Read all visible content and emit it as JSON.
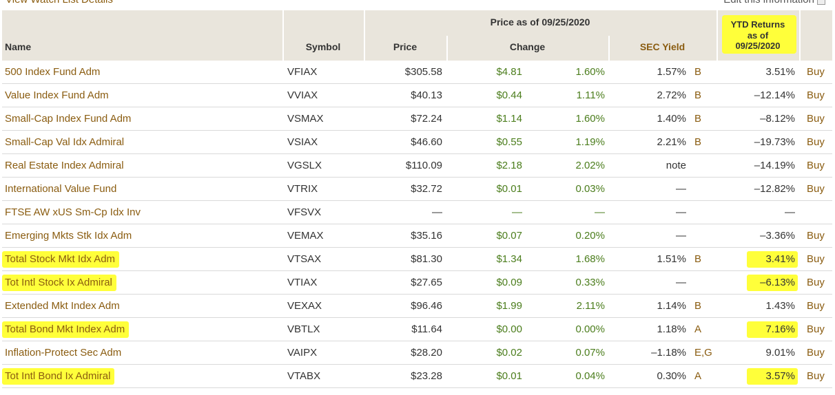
{
  "top_link": "View Watch List Details",
  "edit_link": "Edit this information",
  "header": {
    "name": "Name",
    "symbol": "Symbol",
    "price_group": "Price as of 09/25/2020",
    "price": "Price",
    "change": "Change",
    "sec_yield": "SEC Yield",
    "ytd_line1": "YTD Returns",
    "ytd_line2": "as of",
    "ytd_line3": "09/25/2020"
  },
  "rows": [
    {
      "name": "500 Index Fund Adm",
      "symbol": "VFIAX",
      "price": "$305.58",
      "change": "$4.81",
      "change_percent": "1.60%",
      "sec_yield": "1.57%",
      "sec_grade": "B",
      "ytd_return": "3.51%",
      "action": "Buy",
      "highlight": false
    },
    {
      "name": "Value Index Fund Adm",
      "symbol": "VVIAX",
      "price": "$40.13",
      "change": "$0.44",
      "change_percent": "1.11%",
      "sec_yield": "2.72%",
      "sec_grade": "B",
      "ytd_return": "–12.14%",
      "action": "Buy",
      "highlight": false
    },
    {
      "name": "Small-Cap Index Fund Adm",
      "symbol": "VSMAX",
      "price": "$72.24",
      "change": "$1.14",
      "change_percent": "1.60%",
      "sec_yield": "1.40%",
      "sec_grade": "B",
      "ytd_return": "–8.12%",
      "action": "Buy",
      "highlight": false
    },
    {
      "name": "Small-Cap Val Idx Admiral",
      "symbol": "VSIAX",
      "price": "$46.60",
      "change": "$0.55",
      "change_percent": "1.19%",
      "sec_yield": "2.21%",
      "sec_grade": "B",
      "ytd_return": "–19.73%",
      "action": "Buy",
      "highlight": false
    },
    {
      "name": "Real Estate Index Admiral",
      "symbol": "VGSLX",
      "price": "$110.09",
      "change": "$2.18",
      "change_percent": "2.02%",
      "sec_yield": "note",
      "sec_grade": null,
      "ytd_return": "–14.19%",
      "action": "Buy",
      "highlight": false
    },
    {
      "name": "International Value Fund",
      "symbol": "VTRIX",
      "price": "$32.72",
      "change": "$0.01",
      "change_percent": "0.03%",
      "sec_yield": "—",
      "sec_grade": null,
      "ytd_return": "–12.82%",
      "action": "Buy",
      "highlight": false
    },
    {
      "name": "FTSE AW xUS Sm-Cp Idx Inv",
      "symbol": "VFSVX",
      "price": "—",
      "change": "—",
      "change_percent": "—",
      "sec_yield": "—",
      "sec_grade": null,
      "ytd_return": "—",
      "action": null,
      "highlight": false
    },
    {
      "name": "Emerging Mkts Stk Idx Adm",
      "symbol": "VEMAX",
      "price": "$35.16",
      "change": "$0.07",
      "change_percent": "0.20%",
      "sec_yield": "—",
      "sec_grade": null,
      "ytd_return": "–3.36%",
      "action": "Buy",
      "highlight": false
    },
    {
      "name": "Total Stock Mkt Idx Adm",
      "symbol": "VTSAX",
      "price": "$81.30",
      "change": "$1.34",
      "change_percent": "1.68%",
      "sec_yield": "1.51%",
      "sec_grade": "B",
      "ytd_return": "3.41%",
      "action": "Buy",
      "highlight": true
    },
    {
      "name": "Tot Intl Stock Ix Admiral",
      "symbol": "VTIAX",
      "price": "$27.65",
      "change": "$0.09",
      "change_percent": "0.33%",
      "sec_yield": "—",
      "sec_grade": null,
      "ytd_return": "–6.13%",
      "action": "Buy",
      "highlight": true
    },
    {
      "name": "Extended Mkt Index Adm",
      "symbol": "VEXAX",
      "price": "$96.46",
      "change": "$1.99",
      "change_percent": "2.11%",
      "sec_yield": "1.14%",
      "sec_grade": "B",
      "ytd_return": "1.43%",
      "action": "Buy",
      "highlight": false
    },
    {
      "name": "Total Bond Mkt Index Adm",
      "symbol": "VBTLX",
      "price": "$11.64",
      "change": "$0.00",
      "change_percent": "0.00%",
      "sec_yield": "1.18%",
      "sec_grade": "A",
      "ytd_return": "7.16%",
      "action": "Buy",
      "highlight": true
    },
    {
      "name": "Inflation-Protect Sec Adm",
      "symbol": "VAIPX",
      "price": "$28.20",
      "change": "$0.02",
      "change_percent": "0.07%",
      "sec_yield": "–1.18%",
      "sec_grade": "E,G",
      "ytd_return": "9.01%",
      "action": "Buy",
      "highlight": false
    },
    {
      "name": "Tot Intl Bond Ix Admiral",
      "symbol": "VTABX",
      "price": "$23.28",
      "change": "$0.01",
      "change_percent": "0.04%",
      "sec_yield": "0.30%",
      "sec_grade": "A",
      "ytd_return": "3.57%",
      "action": "Buy",
      "highlight": true
    }
  ]
}
